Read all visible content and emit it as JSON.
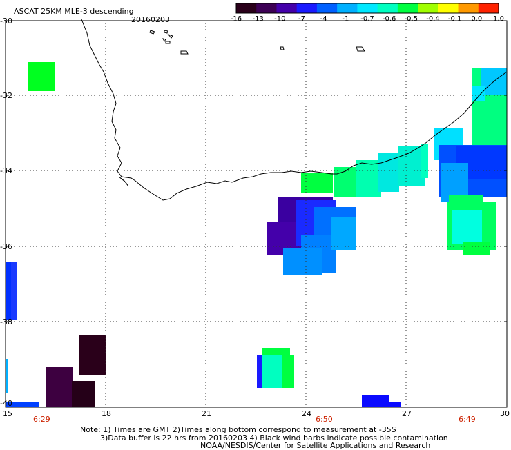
{
  "header": {
    "title": "ASCAT 25KM MLE-3 descending",
    "date": "20160203"
  },
  "colorbar": {
    "labels": [
      "-16",
      "-13",
      "-10",
      "-7",
      "-4",
      "-1",
      "-0.7",
      "-0.6",
      "-0.5",
      "-0.4",
      "-0.1",
      "0.0",
      "1.0"
    ],
    "colors": [
      "#2a001a",
      "#3d0055",
      "#4400aa",
      "#1a1aff",
      "#0060ff",
      "#00b0ff",
      "#00e8ff",
      "#00ffc0",
      "#00ff40",
      "#a0ff00",
      "#ffff00",
      "#ff9900",
      "#ff2200"
    ]
  },
  "axes": {
    "lat_ticks": [
      "-30",
      "-32",
      "-34",
      "-36",
      "-38",
      "-40"
    ],
    "lon_ticks": [
      "15",
      "18",
      "21",
      "24",
      "27",
      "30"
    ]
  },
  "pass_times": [
    "6:29",
    "6:50",
    "6:49"
  ],
  "note": {
    "line1": "Note: 1) Times are GMT 2)Times along bottom correspond to measurement at -35S",
    "line2": "3)Data buffer is 22 hrs from 20160203 4) Black wind barbs indicate possible contamination",
    "line3": "NOAA/NESDIS/Center for Satellite Applications and Research"
  }
}
